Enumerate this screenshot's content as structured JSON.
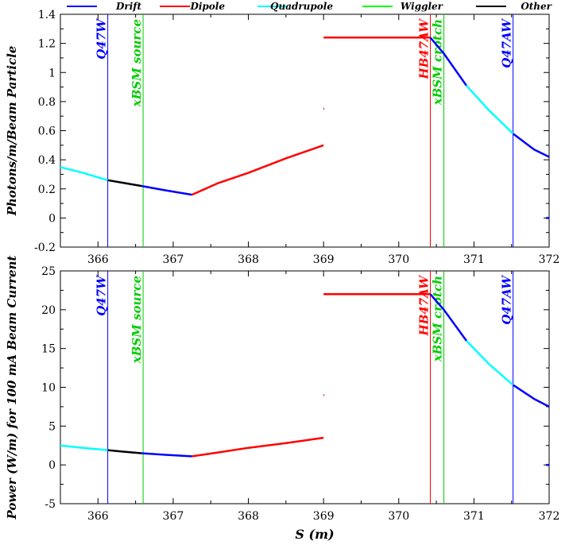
{
  "chart_data": {
    "type": "line",
    "legend": {
      "placement": "top",
      "items": [
        {
          "name": "Drift",
          "color": "#0000ff"
        },
        {
          "name": "Dipole",
          "color": "#ff0000"
        },
        {
          "name": "Quadrupole",
          "color": "#00ffff"
        },
        {
          "name": "Wiggler",
          "color": "#00ff00"
        },
        {
          "name": "Other",
          "color": "#000000"
        }
      ]
    },
    "xlabel": "S (m)",
    "xlim": [
      365.5,
      372
    ],
    "xticks": [
      "366",
      "367",
      "368",
      "369",
      "370",
      "371",
      "372"
    ],
    "markers": [
      {
        "label": "Q47W",
        "x": 366.13,
        "color": "#0000ff"
      },
      {
        "label": "xBSM source",
        "x": 366.6,
        "color": "#00cc00"
      },
      {
        "label": "HB47AW",
        "x": 370.42,
        "color": "#ff0000"
      },
      {
        "label": "xBSM crotch",
        "x": 370.6,
        "color": "#00cc00"
      },
      {
        "label": "Q47AW",
        "x": 371.52,
        "color": "#0000ff"
      }
    ],
    "panels": [
      {
        "ylabel": "Photons/m/Beam Particle",
        "ylim": [
          -0.2,
          1.4
        ],
        "yticks": [
          "-0.2",
          "0",
          "0.2",
          "0.4",
          "0.6",
          "0.8",
          "1",
          "1.2",
          "1.4"
        ],
        "segments": [
          {
            "type": "Quadrupole",
            "points": [
              [
                365.5,
                0.35
              ],
              [
                365.8,
                0.31
              ],
              [
                366.13,
                0.26
              ]
            ]
          },
          {
            "type": "Other",
            "points": [
              [
                366.13,
                0.26
              ],
              [
                366.35,
                0.24
              ],
              [
                366.58,
                0.22
              ]
            ]
          },
          {
            "type": "Drift",
            "points": [
              [
                366.58,
                0.22
              ],
              [
                366.9,
                0.19
              ],
              [
                367.25,
                0.16
              ]
            ]
          },
          {
            "type": "Dipole",
            "points": [
              [
                367.25,
                0.16
              ],
              [
                367.6,
                0.24
              ],
              [
                368,
                0.31
              ],
              [
                368.5,
                0.41
              ],
              [
                369,
                0.5
              ]
            ]
          },
          {
            "type": "Dipole",
            "points": [
              [
                369.0,
                0.75
              ],
              [
                369.01,
                0.75
              ]
            ]
          },
          {
            "type": "Dipole",
            "points": [
              [
                369.0,
                1.24
              ],
              [
                370.42,
                1.24
              ]
            ]
          },
          {
            "type": "Drift",
            "points": [
              [
                370.42,
                1.24
              ],
              [
                370.6,
                1.13
              ],
              [
                370.9,
                0.91
              ]
            ]
          },
          {
            "type": "Quadrupole",
            "points": [
              [
                370.9,
                0.91
              ],
              [
                371.2,
                0.74
              ],
              [
                371.52,
                0.58
              ]
            ]
          },
          {
            "type": "Drift",
            "points": [
              [
                371.52,
                0.58
              ],
              [
                371.8,
                0.47
              ],
              [
                372,
                0.42
              ]
            ]
          },
          {
            "type": "Drift",
            "points": [
              [
                371.96,
                0.0
              ],
              [
                372,
                0.0
              ]
            ]
          }
        ]
      },
      {
        "ylabel": "Power (W/m) for 100 mA Beam Current",
        "ylim": [
          -5,
          25
        ],
        "yticks": [
          "-5",
          "0",
          "5",
          "10",
          "15",
          "20",
          "25"
        ],
        "segments": [
          {
            "type": "Quadrupole",
            "points": [
              [
                365.5,
                2.5
              ],
              [
                365.8,
                2.2
              ],
              [
                366.13,
                1.9
              ]
            ]
          },
          {
            "type": "Other",
            "points": [
              [
                366.13,
                1.9
              ],
              [
                366.35,
                1.7
              ],
              [
                366.58,
                1.5
              ]
            ]
          },
          {
            "type": "Drift",
            "points": [
              [
                366.58,
                1.5
              ],
              [
                366.9,
                1.3
              ],
              [
                367.25,
                1.1
              ]
            ]
          },
          {
            "type": "Dipole",
            "points": [
              [
                367.25,
                1.1
              ],
              [
                367.6,
                1.6
              ],
              [
                368,
                2.2
              ],
              [
                368.5,
                2.8
              ],
              [
                369,
                3.5
              ]
            ]
          },
          {
            "type": "Dipole",
            "points": [
              [
                369.0,
                9.0
              ],
              [
                369.01,
                9.0
              ]
            ]
          },
          {
            "type": "Dipole",
            "points": [
              [
                369.0,
                22.0
              ],
              [
                370.42,
                22.0
              ]
            ]
          },
          {
            "type": "Drift",
            "points": [
              [
                370.42,
                22.0
              ],
              [
                370.6,
                20.0
              ],
              [
                370.9,
                16.0
              ]
            ]
          },
          {
            "type": "Quadrupole",
            "points": [
              [
                370.9,
                16.0
              ],
              [
                371.2,
                13.0
              ],
              [
                371.52,
                10.3
              ]
            ]
          },
          {
            "type": "Drift",
            "points": [
              [
                371.52,
                10.3
              ],
              [
                371.8,
                8.5
              ],
              [
                372,
                7.5
              ]
            ]
          },
          {
            "type": "Drift",
            "points": [
              [
                371.96,
                0.0
              ],
              [
                372,
                0.0
              ]
            ]
          }
        ]
      }
    ]
  }
}
